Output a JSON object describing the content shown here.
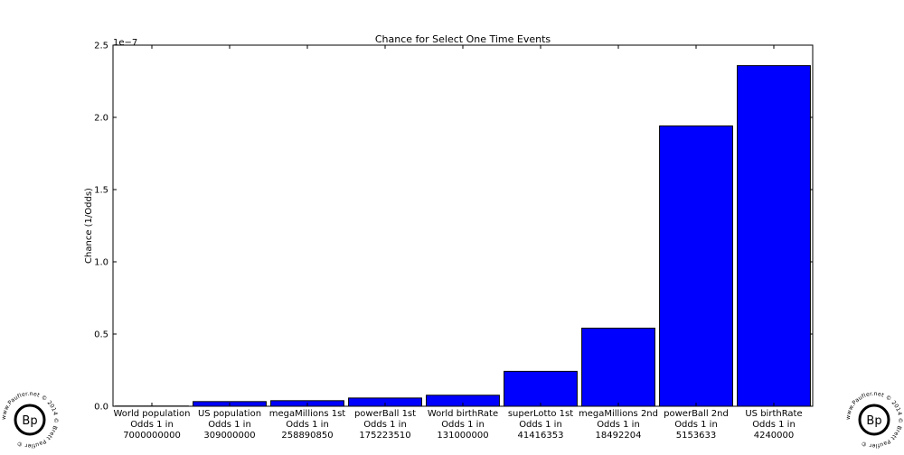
{
  "chart_data": {
    "type": "bar",
    "title": "Chance for Select One Time Events",
    "xlabel": "",
    "ylabel": "Chance (1/Odds)",
    "y_scale_label": "1e−7",
    "ylim": [
      0,
      2.5e-07
    ],
    "y_ticks": [
      {
        "value": 0,
        "label": "0.0"
      },
      {
        "value": 5e-08,
        "label": "0.5"
      },
      {
        "value": 1e-07,
        "label": "1.0"
      },
      {
        "value": 1.5e-07,
        "label": "1.5"
      },
      {
        "value": 2e-07,
        "label": "2.0"
      },
      {
        "value": 2.5e-07,
        "label": "2.5"
      }
    ],
    "bar_color": "#0000ff",
    "grid": false,
    "categories": [
      [
        "World population",
        "Odds 1 in",
        "7000000000"
      ],
      [
        "US population",
        "Odds 1 in",
        "309000000"
      ],
      [
        "megaMillions 1st",
        "Odds 1 in",
        "258890850"
      ],
      [
        "powerBall 1st",
        "Odds 1 in",
        "175223510"
      ],
      [
        "World birthRate",
        "Odds 1 in",
        "131000000"
      ],
      [
        "superLotto 1st",
        "Odds 1 in",
        "41416353"
      ],
      [
        "megaMillions 2nd",
        "Odds 1 in",
        "18492204"
      ],
      [
        "powerBall 2nd",
        "Odds 1 in",
        "5153633"
      ],
      [
        "US birthRate",
        "Odds 1 in",
        "4240000"
      ]
    ],
    "values": [
      1.4286e-10,
      3.236e-09,
      3.863e-09,
      5.707e-09,
      7.634e-09,
      2.4145e-08,
      5.4077e-08,
      1.9404e-07,
      2.3585e-07
    ]
  },
  "watermark": {
    "text": "www.Paufler.net © 2014 © Brett Paufler ©",
    "monogram": "Bp"
  }
}
